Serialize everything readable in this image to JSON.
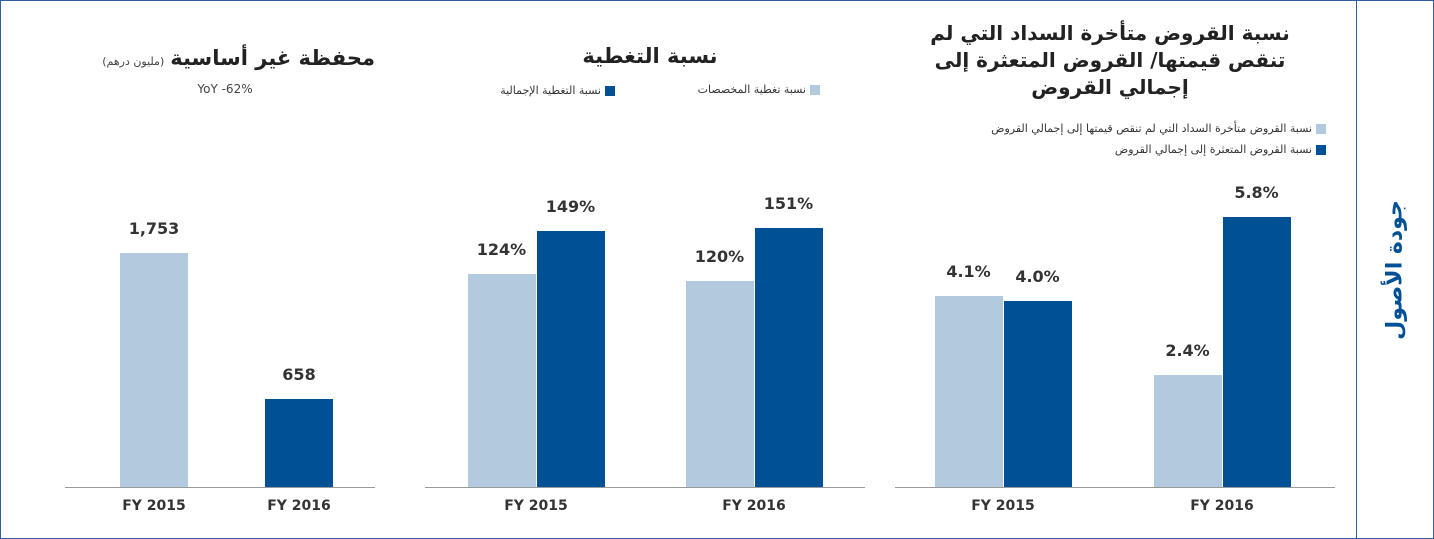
{
  "section_title": "جودة الأصول",
  "chart_data": [
    {
      "type": "bar",
      "title": "محفظة غير أساسية",
      "title_note": "(مليون درهم)",
      "subtitle": "YoY -62%",
      "categories": [
        "FY 2015",
        "FY 2016"
      ],
      "values": [
        1753,
        658
      ],
      "value_labels": [
        "1,753",
        "658"
      ],
      "colors": [
        "#b3c9de",
        "#005096"
      ]
    },
    {
      "type": "grouped_bar",
      "title": "نسبة التغطية",
      "categories": [
        "FY 2015",
        "FY 2016"
      ],
      "series": [
        {
          "name": "نسبة تغطية المخصصات",
          "color": "#b3c9de",
          "values": [
            124,
            120
          ],
          "value_labels": [
            "124%",
            "120%"
          ]
        },
        {
          "name": "نسبة التغطية الإجمالية",
          "color": "#005096",
          "values": [
            149,
            151
          ],
          "value_labels": [
            "149%",
            "151%"
          ]
        }
      ]
    },
    {
      "type": "grouped_bar",
      "title": "نسبة القروض متأخرة السداد التي لم تنقص قيمتها/ القروض المتعثرة إلى إجمالي القروض",
      "categories": [
        "FY 2015",
        "FY 2016"
      ],
      "series": [
        {
          "name": "نسبة القروض متأخرة السداد التي لم تنقص قيمتها إلى إجمالي القروض",
          "color": "#b3c9de",
          "values": [
            4.1,
            2.4
          ],
          "value_labels": [
            "4.1%",
            "2.4%"
          ]
        },
        {
          "name": "نسبة القروض المتعثرة إلى إجمالي القروض",
          "color": "#005096",
          "values": [
            4.0,
            5.8
          ],
          "value_labels": [
            "4.0%",
            "5.8%"
          ]
        }
      ]
    }
  ]
}
